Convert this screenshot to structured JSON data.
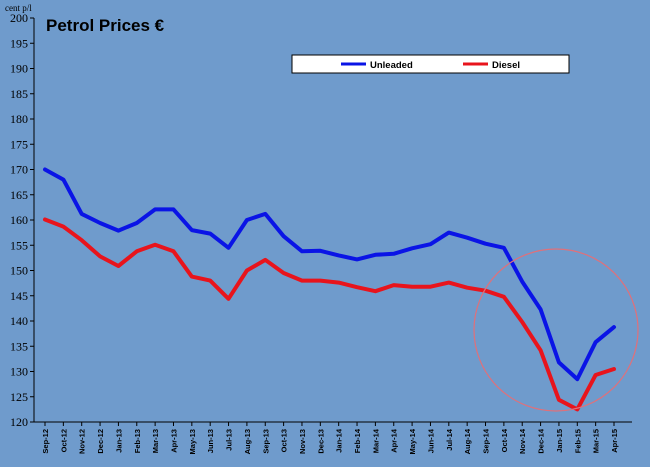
{
  "chart_data": {
    "type": "line",
    "title": "Petrol Prices €",
    "ylabel": "cent p/l",
    "xlabel": "",
    "ylim": [
      120,
      200
    ],
    "yticks": [
      120,
      125,
      130,
      135,
      140,
      145,
      150,
      155,
      160,
      165,
      170,
      175,
      180,
      185,
      190,
      195,
      200
    ],
    "grid": false,
    "legend": "top-right",
    "categories": [
      "Sep-12",
      "Oct-12",
      "Nov-12",
      "Dec-12",
      "Jan-13",
      "Feb-13",
      "Mar-13",
      "Apr-13",
      "May-13",
      "Jun-13",
      "Jul-13",
      "Aug-13",
      "Sep-13",
      "Oct-13",
      "Nov-13",
      "Dec-13",
      "Jan-14",
      "Feb-14",
      "Mar-14",
      "Apr-14",
      "May-14",
      "Jun-14",
      "Jul-14",
      "Aug-14",
      "Sep-14",
      "Oct-14",
      "Nov-14",
      "Dec-14",
      "Jan-15",
      "Feb-15",
      "Mar-15",
      "Apr-15"
    ],
    "series": [
      {
        "name": "Unleaded",
        "color": "#0a14e6",
        "values": [
          170.0,
          168.0,
          161.2,
          159.4,
          157.9,
          159.4,
          162.1,
          162.1,
          158.0,
          157.3,
          154.5,
          160.0,
          161.2,
          156.8,
          153.8,
          153.9,
          153.0,
          152.2,
          153.1,
          153.3,
          154.4,
          155.2,
          157.5,
          156.5,
          155.3,
          154.5,
          147.8,
          142.3,
          131.8,
          128.5,
          135.8,
          138.8
        ]
      },
      {
        "name": "Diesel",
        "color": "#e8141c",
        "values": [
          160.1,
          158.7,
          156.0,
          152.8,
          150.9,
          153.8,
          155.1,
          153.8,
          148.8,
          148.0,
          144.4,
          150.0,
          152.1,
          149.5,
          148.0,
          148.0,
          147.6,
          146.7,
          145.9,
          147.1,
          146.8,
          146.8,
          147.6,
          146.6,
          146.0,
          144.8,
          139.8,
          134.2,
          124.4,
          122.5,
          129.3,
          130.5
        ]
      }
    ],
    "annotation": {
      "type": "ellipse",
      "color": "#e0707a"
    }
  }
}
